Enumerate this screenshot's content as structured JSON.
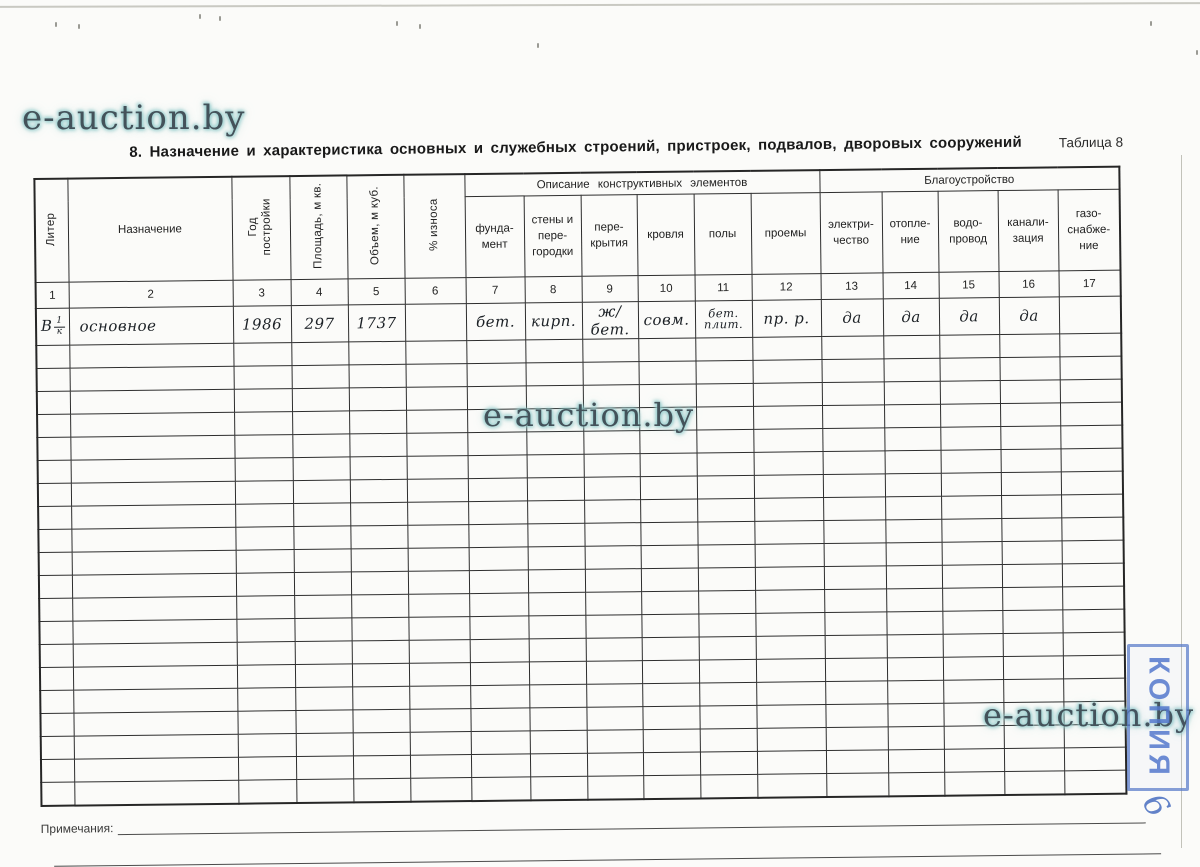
{
  "page": {
    "title": "8. Назначение и характеристика основных и служебных строений, пристроек, подвалов, дворовых сооружений",
    "table_label": "Таблица 8",
    "notes_label": "Примечания:",
    "watermark": "e-auction.by",
    "stamp_text": "КОПИЯ",
    "page_mark": "6",
    "colors": {
      "stamp_blue": "#587ac8",
      "watermark_glow": "#96cdcd",
      "ink": "#1c2126",
      "table_line": "#2e2e2e"
    }
  },
  "table": {
    "group_headers": {
      "construction": "Описание конструктивных элементов",
      "amenities": "Благоустройство"
    },
    "columns": [
      {
        "num": "1",
        "label": "Литер"
      },
      {
        "num": "2",
        "label": "Назначение"
      },
      {
        "num": "3",
        "label": "Год\nпостройки"
      },
      {
        "num": "4",
        "label": "Площадь, м кв."
      },
      {
        "num": "5",
        "label": "Объем, м куб."
      },
      {
        "num": "6",
        "label": "% износа"
      },
      {
        "num": "7",
        "label": "фунда-\nмент"
      },
      {
        "num": "8",
        "label": "стены и\nпере-\nгородки"
      },
      {
        "num": "9",
        "label": "пере-\nкрытия"
      },
      {
        "num": "10",
        "label": "кровля"
      },
      {
        "num": "11",
        "label": "полы"
      },
      {
        "num": "12",
        "label": "проемы"
      },
      {
        "num": "13",
        "label": "электри-\nчество"
      },
      {
        "num": "14",
        "label": "отопле-\nние"
      },
      {
        "num": "15",
        "label": "водо-\nпровод"
      },
      {
        "num": "16",
        "label": "канали-\nзация"
      },
      {
        "num": "17",
        "label": "газо-\nснабже-\nние"
      }
    ],
    "empty_row_count": 20,
    "row1": {
      "liter_main": "В",
      "liter_frac_top": "1",
      "liter_frac_bottom": "к",
      "purpose": "основное",
      "year": "1986",
      "area": "297",
      "volume": "1737",
      "wear": "",
      "foundation": "бет.",
      "walls": "кирп.",
      "ceilings": "ж/бет.",
      "roof": "совм.",
      "floors": "бет.\nплит.",
      "openings": "пр. р.",
      "electricity": "да",
      "heating": "да",
      "water": "да",
      "sewerage": "да",
      "gas": ""
    }
  }
}
